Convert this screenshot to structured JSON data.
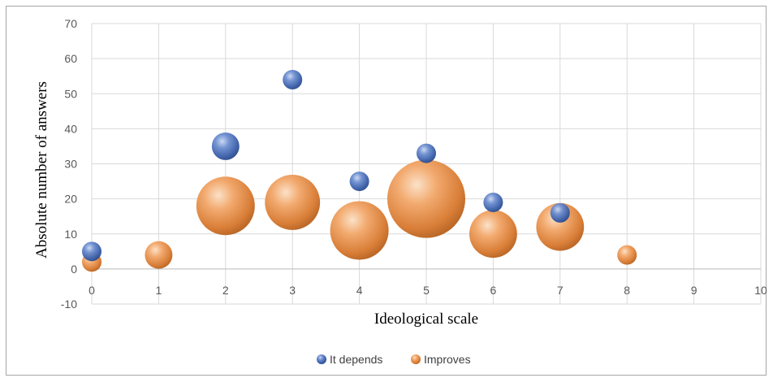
{
  "chart_data": {
    "type": "bubble",
    "xlabel": "Ideological scale",
    "ylabel": "Absolute number of answers",
    "xlim": [
      0,
      10
    ],
    "ylim": [
      -10,
      70
    ],
    "xticks": [
      0,
      1,
      2,
      3,
      4,
      5,
      6,
      7,
      8,
      9,
      10
    ],
    "yticks": [
      -10,
      0,
      10,
      20,
      30,
      40,
      50,
      60,
      70
    ],
    "grid": true,
    "legend_position": "bottom",
    "series": [
      {
        "name": "It depends",
        "color": "#4472c4",
        "points": [
          {
            "x": 0,
            "y": 5,
            "size": 1
          },
          {
            "x": 2,
            "y": 35,
            "size": 2
          },
          {
            "x": 3,
            "y": 54,
            "size": 1
          },
          {
            "x": 4,
            "y": 25,
            "size": 1
          },
          {
            "x": 5,
            "y": 33,
            "size": 1
          },
          {
            "x": 6,
            "y": 19,
            "size": 1
          },
          {
            "x": 7,
            "y": 16,
            "size": 1
          }
        ]
      },
      {
        "name": "Improves",
        "color": "#ed7d31",
        "points": [
          {
            "x": 0,
            "y": 2,
            "size": 1
          },
          {
            "x": 1,
            "y": 4,
            "size": 2
          },
          {
            "x": 2,
            "y": 18,
            "size": 9
          },
          {
            "x": 3,
            "y": 19,
            "size": 8
          },
          {
            "x": 4,
            "y": 11,
            "size": 9
          },
          {
            "x": 5,
            "y": 20,
            "size": 16
          },
          {
            "x": 6,
            "y": 10,
            "size": 6
          },
          {
            "x": 7,
            "y": 12,
            "size": 6
          },
          {
            "x": 8,
            "y": 4,
            "size": 1
          }
        ]
      }
    ]
  }
}
